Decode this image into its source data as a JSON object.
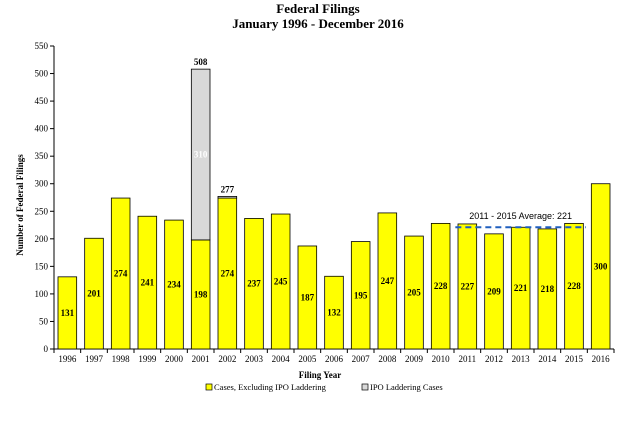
{
  "chart_data": {
    "type": "bar",
    "stacked": true,
    "title": "Federal Filings",
    "subtitle": "January 1996 -  December 2016",
    "xlabel": "Filing Year",
    "ylabel": "Number of Federal Filings",
    "ylim": [
      0,
      550
    ],
    "yticks": [
      0,
      50,
      100,
      150,
      200,
      250,
      300,
      350,
      400,
      450,
      500,
      550
    ],
    "grid": false,
    "legend_position": "bottom",
    "categories": [
      "1996",
      "1997",
      "1998",
      "1999",
      "2000",
      "2001",
      "2002",
      "2003",
      "2004",
      "2005",
      "2006",
      "2007",
      "2008",
      "2009",
      "2010",
      "2011",
      "2012",
      "2013",
      "2014",
      "2015",
      "2016"
    ],
    "series": [
      {
        "name": "Cases, Excluding IPO Laddering",
        "color": "#ffff00",
        "values": [
          131,
          201,
          274,
          241,
          234,
          198,
          274,
          237,
          245,
          187,
          132,
          195,
          247,
          205,
          228,
          227,
          209,
          221,
          218,
          228,
          300
        ]
      },
      {
        "name": "IPO Laddering Cases",
        "color": "#d9d9d9",
        "values": [
          0,
          0,
          0,
          0,
          0,
          310,
          3,
          0,
          0,
          0,
          0,
          0,
          0,
          0,
          0,
          0,
          0,
          0,
          0,
          0,
          0
        ]
      }
    ],
    "totals_labels": [
      {
        "category": "2001",
        "text": "508"
      },
      {
        "category": "2002",
        "text": "277"
      }
    ],
    "average_line": {
      "label": "2011 - 2015 Average: 221",
      "value": 221,
      "from": "2011",
      "to": "2015",
      "color": "#1f5fbf"
    }
  }
}
